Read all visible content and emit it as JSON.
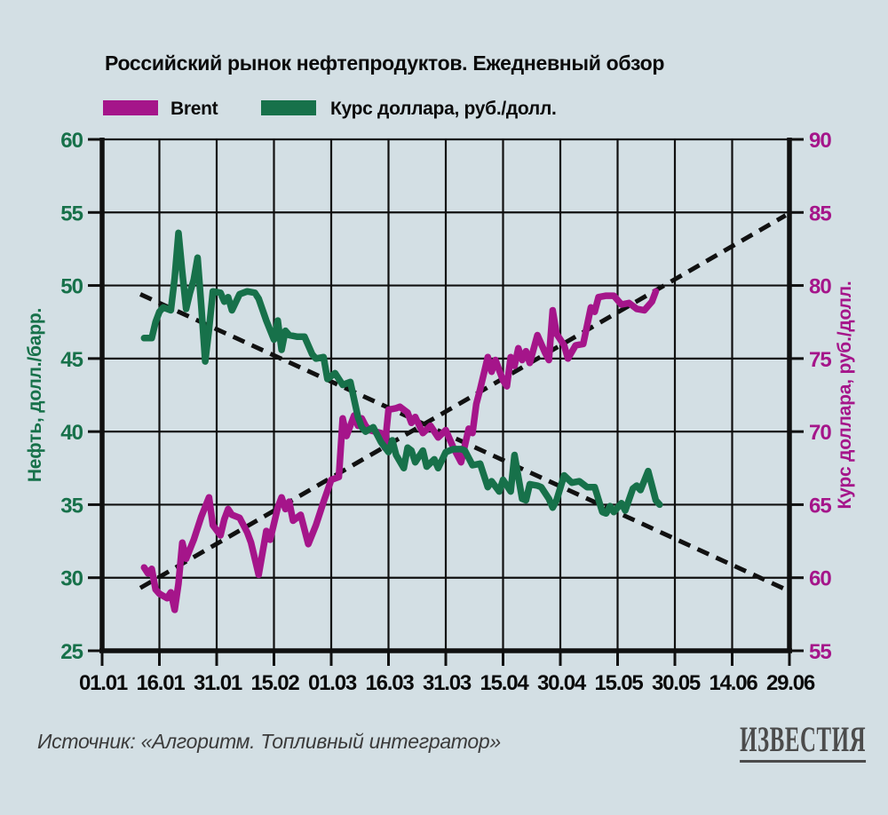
{
  "page": {
    "background": "#d3dfe4"
  },
  "header": {
    "title": "Российский рынок нефтепродуктов. Ежедневный обзор"
  },
  "legend": [
    {
      "label": "Brent",
      "color": "#a5158a"
    },
    {
      "label": "Курс доллара, руб./долл.",
      "color": "#17714a"
    }
  ],
  "footer": {
    "source": "Источник: «Алгоритм. Топливный интегратор»",
    "logo": "ИЗВЕСТИЯ"
  },
  "chart_data": {
    "type": "line",
    "title": "Российский рынок нефтепродуктов. Ежедневный обзор",
    "grid": true,
    "grid_color": "#101010",
    "x_ticks": [
      "01.01",
      "16.01",
      "31.01",
      "15.02",
      "01.03",
      "16.03",
      "31.03",
      "15.04",
      "30.04",
      "15.05",
      "30.05",
      "14.06",
      "29.06"
    ],
    "left_axis": {
      "label": "Нефть, долл./барр.",
      "min": 25,
      "max": 60,
      "step": 5,
      "ticks": [
        25,
        30,
        35,
        40,
        45,
        50,
        55,
        60
      ],
      "color": "#17714a"
    },
    "right_axis": {
      "label": "Курс доллара, руб./долл.",
      "min": 55,
      "max": 90,
      "step": 5,
      "ticks": [
        55,
        60,
        65,
        70,
        75,
        80,
        85,
        90
      ],
      "color": "#a5158a"
    },
    "series": [
      {
        "name": "Brent",
        "axis": "left",
        "color": "#a5158a",
        "points": [
          [
            "12.01",
            30.7
          ],
          [
            "13.01",
            30.3
          ],
          [
            "14.01",
            30.6
          ],
          [
            "15.01",
            29.2
          ],
          [
            "16.01",
            28.9
          ],
          [
            "18.01",
            28.6
          ],
          [
            "19.01",
            29.0
          ],
          [
            "20.01",
            27.8
          ],
          [
            "21.01",
            29.6
          ],
          [
            "22.01",
            32.4
          ],
          [
            "23.01",
            31.3
          ],
          [
            "25.01",
            32.6
          ],
          [
            "27.01",
            34.2
          ],
          [
            "29.01",
            35.5
          ],
          [
            "30.01",
            33.6
          ],
          [
            "01.02",
            32.9
          ],
          [
            "02.02",
            34.0
          ],
          [
            "03.02",
            34.7
          ],
          [
            "04.02",
            34.3
          ],
          [
            "06.02",
            34.1
          ],
          [
            "08.02",
            33.1
          ],
          [
            "09.02",
            32.4
          ],
          [
            "11.02",
            30.2
          ],
          [
            "13.02",
            33.2
          ],
          [
            "14.02",
            32.6
          ],
          [
            "16.02",
            34.8
          ],
          [
            "17.02",
            35.5
          ],
          [
            "18.02",
            34.7
          ],
          [
            "19.02",
            35.2
          ],
          [
            "20.02",
            33.9
          ],
          [
            "22.02",
            34.3
          ],
          [
            "24.02",
            32.3
          ],
          [
            "26.02",
            33.6
          ],
          [
            "28.02",
            35.2
          ],
          [
            "01.03",
            36.7
          ],
          [
            "03.03",
            36.9
          ],
          [
            "04.03",
            40.9
          ],
          [
            "05.03",
            39.7
          ],
          [
            "07.03",
            41.1
          ],
          [
            "08.03",
            40.4
          ],
          [
            "09.03",
            40.9
          ],
          [
            "10.03",
            40.4
          ],
          [
            "11.03",
            40.1
          ],
          [
            "14.03",
            39.9
          ],
          [
            "15.03",
            38.9
          ],
          [
            "16.03",
            41.5
          ],
          [
            "18.03",
            41.6
          ],
          [
            "19.03",
            41.7
          ],
          [
            "21.03",
            41.3
          ],
          [
            "22.03",
            40.6
          ],
          [
            "23.03",
            41.0
          ],
          [
            "25.03",
            39.9
          ],
          [
            "27.03",
            40.4
          ],
          [
            "29.03",
            39.6
          ],
          [
            "31.03",
            40.1
          ],
          [
            "02.04",
            38.9
          ],
          [
            "04.04",
            37.9
          ],
          [
            "06.04",
            40.2
          ],
          [
            "07.04",
            39.9
          ],
          [
            "08.04",
            41.9
          ],
          [
            "09.04",
            42.9
          ],
          [
            "11.04",
            45.1
          ],
          [
            "12.04",
            44.1
          ],
          [
            "13.04",
            44.9
          ],
          [
            "15.04",
            43.5
          ],
          [
            "16.04",
            43.1
          ],
          [
            "17.04",
            45.1
          ],
          [
            "18.04",
            44.5
          ],
          [
            "19.04",
            45.7
          ],
          [
            "20.04",
            44.9
          ],
          [
            "21.04",
            45.5
          ],
          [
            "22.04",
            44.7
          ],
          [
            "24.04",
            46.6
          ],
          [
            "26.04",
            45.4
          ],
          [
            "27.04",
            44.9
          ],
          [
            "28.04",
            48.3
          ],
          [
            "29.04",
            46.7
          ],
          [
            "01.05",
            45.9
          ],
          [
            "02.05",
            45.0
          ],
          [
            "04.05",
            45.9
          ],
          [
            "06.05",
            46.0
          ],
          [
            "08.05",
            48.5
          ],
          [
            "09.05",
            48.2
          ],
          [
            "10.05",
            49.2
          ],
          [
            "12.05",
            49.3
          ],
          [
            "14.05",
            49.3
          ],
          [
            "16.05",
            48.7
          ],
          [
            "18.05",
            48.8
          ],
          [
            "20.05",
            48.4
          ],
          [
            "22.05",
            48.3
          ],
          [
            "24.05",
            48.9
          ],
          [
            "25.05",
            49.6
          ]
        ]
      },
      {
        "name": "Курс доллара, руб./долл.",
        "axis": "right",
        "color": "#17714a",
        "points": [
          [
            "12.01",
            76.4
          ],
          [
            "13.01",
            76.4
          ],
          [
            "14.01",
            76.4
          ],
          [
            "15.01",
            77.5
          ],
          [
            "16.01",
            78.2
          ],
          [
            "17.01",
            78.5
          ],
          [
            "18.01",
            78.4
          ],
          [
            "19.01",
            78.3
          ],
          [
            "20.01",
            80.5
          ],
          [
            "21.01",
            83.6
          ],
          [
            "22.01",
            80.9
          ],
          [
            "23.01",
            78.4
          ],
          [
            "24.01",
            79.5
          ],
          [
            "25.01",
            80.4
          ],
          [
            "26.01",
            81.9
          ],
          [
            "27.01",
            78.5
          ],
          [
            "28.01",
            74.8
          ],
          [
            "29.01",
            77.0
          ],
          [
            "30.01",
            79.6
          ],
          [
            "01.02",
            79.5
          ],
          [
            "02.02",
            78.9
          ],
          [
            "03.02",
            79.2
          ],
          [
            "04.02",
            78.3
          ],
          [
            "06.02",
            79.4
          ],
          [
            "08.02",
            79.6
          ],
          [
            "10.02",
            79.5
          ],
          [
            "11.02",
            79.1
          ],
          [
            "13.02",
            77.6
          ],
          [
            "15.02",
            76.3
          ],
          [
            "16.02",
            77.6
          ],
          [
            "17.02",
            75.6
          ],
          [
            "18.02",
            76.9
          ],
          [
            "19.02",
            76.6
          ],
          [
            "21.02",
            76.5
          ],
          [
            "23.02",
            76.5
          ],
          [
            "25.02",
            75.3
          ],
          [
            "26.02",
            75.0
          ],
          [
            "28.02",
            75.1
          ],
          [
            "29.02",
            73.6
          ],
          [
            "02.03",
            74.0
          ],
          [
            "04.03",
            73.2
          ],
          [
            "06.03",
            73.4
          ],
          [
            "08.03",
            71.0
          ],
          [
            "09.03",
            70.3
          ],
          [
            "10.03",
            70.0
          ],
          [
            "12.03",
            70.3
          ],
          [
            "14.03",
            69.3
          ],
          [
            "16.03",
            68.6
          ],
          [
            "17.03",
            69.4
          ],
          [
            "18.03",
            68.4
          ],
          [
            "20.03",
            67.5
          ],
          [
            "21.03",
            68.9
          ],
          [
            "22.03",
            68.7
          ],
          [
            "23.03",
            67.9
          ],
          [
            "25.03",
            68.7
          ],
          [
            "26.03",
            67.6
          ],
          [
            "28.03",
            68.1
          ],
          [
            "29.03",
            67.5
          ],
          [
            "31.03",
            68.6
          ],
          [
            "02.04",
            68.8
          ],
          [
            "04.04",
            68.8
          ],
          [
            "05.04",
            68.7
          ],
          [
            "07.04",
            67.7
          ],
          [
            "09.04",
            67.8
          ],
          [
            "11.04",
            66.2
          ],
          [
            "12.04",
            66.6
          ],
          [
            "14.04",
            65.9
          ],
          [
            "15.04",
            66.7
          ],
          [
            "17.04",
            65.9
          ],
          [
            "18.04",
            68.4
          ],
          [
            "20.04",
            65.4
          ],
          [
            "21.04",
            65.3
          ],
          [
            "22.04",
            66.4
          ],
          [
            "24.04",
            66.3
          ],
          [
            "25.04",
            66.2
          ],
          [
            "27.04",
            65.4
          ],
          [
            "28.04",
            64.8
          ],
          [
            "29.04",
            65.3
          ],
          [
            "01.05",
            67.0
          ],
          [
            "03.05",
            66.5
          ],
          [
            "05.05",
            66.6
          ],
          [
            "07.05",
            66.2
          ],
          [
            "09.05",
            66.2
          ],
          [
            "11.05",
            64.5
          ],
          [
            "12.05",
            64.4
          ],
          [
            "13.05",
            64.9
          ],
          [
            "14.05",
            64.5
          ],
          [
            "16.05",
            65.1
          ],
          [
            "17.05",
            64.6
          ],
          [
            "19.05",
            66.1
          ],
          [
            "20.05",
            66.3
          ],
          [
            "21.05",
            66.0
          ],
          [
            "23.05",
            67.3
          ],
          [
            "25.05",
            65.3
          ],
          [
            "26.05",
            65.0
          ]
        ]
      }
    ],
    "trend_lines": [
      {
        "name": "Brent trend",
        "axis": "left",
        "style": "dashed",
        "color": "#111111",
        "points": [
          [
            "11.01",
            29.3
          ],
          [
            "28.06",
            54.8
          ]
        ]
      },
      {
        "name": "USD trend",
        "axis": "right",
        "style": "dashed",
        "color": "#111111",
        "points": [
          [
            "11.01",
            79.4
          ],
          [
            "28.06",
            59.2
          ]
        ]
      }
    ]
  }
}
